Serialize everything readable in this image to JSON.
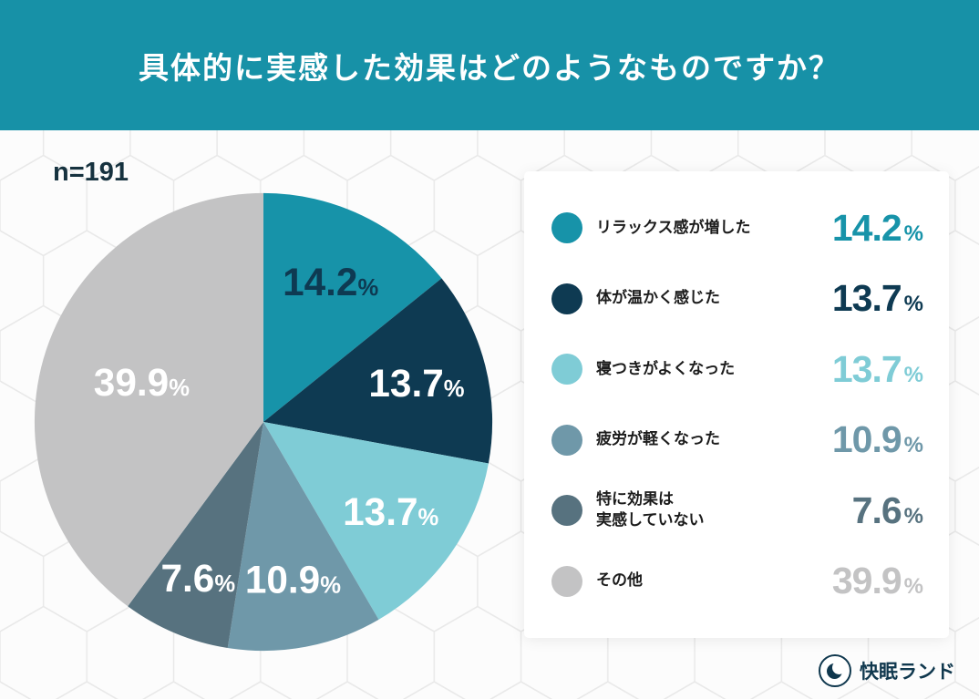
{
  "header": {
    "title": "具体的に実感した効果はどのようなものですか？",
    "bg_color": "#1791a7",
    "text_color": "#ffffff"
  },
  "chart_data": {
    "type": "pie",
    "title": "具体的に実感した効果はどのようなものですか？",
    "sample_label": "n=191",
    "sample_size": 191,
    "unit": "%",
    "start_angle": "top",
    "direction": "clockwise",
    "legend_position": "right",
    "segments": [
      {
        "label": "リラックス感が増した",
        "value": 14.2,
        "color": "#1793a9",
        "label_color": "#0e3a52",
        "label_r": 0.68
      },
      {
        "label": "体が温かく感じた",
        "value": 13.7,
        "color": "#0e3a52",
        "label_color": "#ffffff",
        "label_r": 0.69
      },
      {
        "label": "寝つきがよくなった",
        "value": 13.7,
        "color": "#7fccd6",
        "label_color": "#ffffff",
        "label_r": 0.68
      },
      {
        "label": "疲労が軽くなった",
        "value": 10.9,
        "color": "#6f98a9",
        "label_color": "#ffffff",
        "label_r": 0.7
      },
      {
        "label": "特に効果は\n実感していない",
        "value": 7.6,
        "color": "#57727f",
        "label_color": "#ffffff",
        "label_r": 0.74
      },
      {
        "label": "その他",
        "value": 39.9,
        "color": "#c3c3c4",
        "label_color": "#ffffff",
        "label_r": 0.56
      }
    ]
  },
  "footer": {
    "brand": "快眠ランド"
  }
}
